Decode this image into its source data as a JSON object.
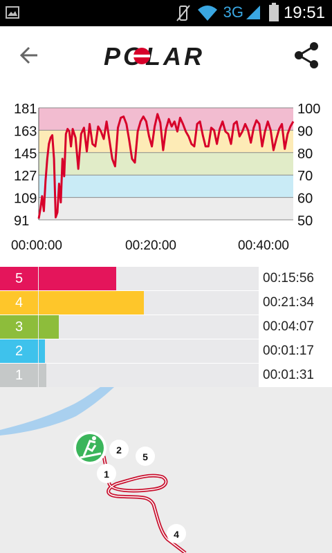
{
  "status": {
    "time": "19:51",
    "network": "3G"
  },
  "header": {
    "brand": "POLAR"
  },
  "chart_data": {
    "type": "line",
    "title": "",
    "left_axis": [
      181,
      163,
      145,
      127,
      109,
      91
    ],
    "right_axis": [
      100,
      90,
      80,
      70,
      60,
      50
    ],
    "x_ticks": [
      "00:00:00",
      "00:20:00",
      "00:40:00"
    ],
    "x_range_minutes": [
      0,
      45
    ],
    "y_range": [
      91,
      181
    ],
    "zone_bands": [
      {
        "zone": 5,
        "from": 163,
        "to": 181,
        "color": "#f2bcd0"
      },
      {
        "zone": 4,
        "from": 145,
        "to": 163,
        "color": "#fdebb6"
      },
      {
        "zone": 3,
        "from": 127,
        "to": 145,
        "color": "#e1ecc8"
      },
      {
        "zone": 2,
        "from": 109,
        "to": 127,
        "color": "#c9ebf6"
      },
      {
        "zone": 1,
        "from": 91,
        "to": 109,
        "color": "#ececec"
      }
    ],
    "series": [
      {
        "color": "#d7002a",
        "x": [
          0,
          0.3,
          0.6,
          0.9,
          1.2,
          1.5,
          1.8,
          2.1,
          2.4,
          2.7,
          3.0,
          3.3,
          3.6,
          3.9,
          4.2,
          4.5,
          4.8,
          5.1,
          5.4,
          5.7,
          6.0,
          6.5,
          7.0,
          7.5,
          8.0,
          8.5,
          9.0,
          9.5,
          10.0,
          10.5,
          11.0,
          11.5,
          12.0,
          12.5,
          13.0,
          13.5,
          14.0,
          14.5,
          15.0,
          15.5,
          16.0,
          16.5,
          17.0,
          17.5,
          18.0,
          18.5,
          19.0,
          19.5,
          20.0,
          20.5,
          21.0,
          21.5,
          22.0,
          22.5,
          23.0,
          23.5,
          24.0,
          24.5,
          25.0,
          25.5,
          26.0,
          26.5,
          27.0,
          27.5,
          28.0,
          28.5,
          29.0,
          29.5,
          30.0,
          30.5,
          31.0,
          31.5,
          32.0,
          32.5,
          33.0,
          33.5,
          34.0,
          34.5,
          35.0,
          35.5,
          36.0,
          36.5,
          37.0,
          37.5,
          38.0,
          38.5,
          39.0,
          39.5,
          40.0,
          40.5,
          41.0,
          41.5,
          42.0,
          42.5,
          43.0,
          43.5,
          44.0,
          44.5,
          45.0
        ],
        "y": [
          92,
          100,
          110,
          98,
          122,
          140,
          152,
          157,
          159,
          140,
          93,
          97,
          120,
          105,
          140,
          126,
          160,
          164,
          162,
          150,
          164,
          157,
          132,
          160,
          165,
          146,
          168,
          152,
          150,
          166,
          162,
          156,
          170,
          155,
          140,
          134,
          165,
          173,
          174,
          168,
          155,
          140,
          137,
          162,
          170,
          174,
          170,
          158,
          150,
          166,
          176,
          169,
          147,
          164,
          172,
          166,
          170,
          162,
          173,
          168,
          162,
          158,
          152,
          150,
          168,
          170,
          159,
          150,
          150,
          165,
          163,
          152,
          164,
          170,
          162,
          160,
          152,
          168,
          170,
          158,
          162,
          168,
          163,
          153,
          165,
          171,
          168,
          150,
          162,
          170,
          163,
          147,
          156,
          164,
          168,
          148,
          160,
          166,
          170
        ]
      }
    ]
  },
  "zones": [
    {
      "label": "5",
      "time": "00:15:56",
      "fraction": 0.318,
      "color": "#e4155b"
    },
    {
      "label": "4",
      "time": "00:21:34",
      "fraction": 0.431,
      "color": "#fec62a"
    },
    {
      "label": "3",
      "time": "00:04:07",
      "fraction": 0.082,
      "color": "#8dbd3b"
    },
    {
      "label": "2",
      "time": "00:01:17",
      "fraction": 0.026,
      "color": "#3ec2ec"
    },
    {
      "label": "1",
      "time": "00:01:31",
      "fraction": 0.03,
      "color": "#c5c8c8"
    }
  ],
  "map": {
    "markers": [
      "2",
      "5",
      "1",
      "4"
    ],
    "route_color": "#c8102e",
    "water_color": "#a9d0ef"
  }
}
